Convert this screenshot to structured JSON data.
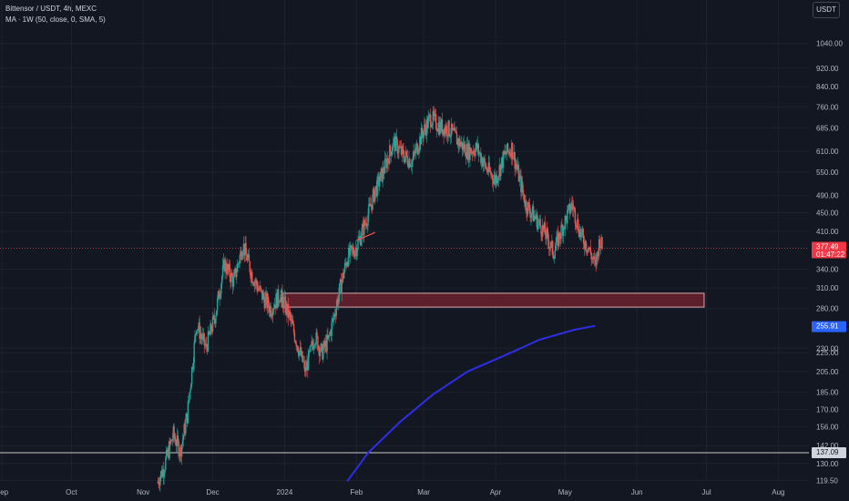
{
  "legend": {
    "symbol_line": "Bittensor / USDT, 4h, MEXC",
    "ma_line": "MA · 1W (50, close, 0, SMA, 5)"
  },
  "currency_button": "USDT",
  "colors": {
    "background": "#131722",
    "up": "#26a69a",
    "down": "#ef5350",
    "ma": "#2e2ee6",
    "zone_fill": "#5c1f2b",
    "grid": "#1e222d",
    "axis_text": "#b2b5be"
  },
  "chart_data": {
    "type": "candlestick",
    "symbol": "Bittensor / USDT",
    "interval": "4h",
    "exchange": "MEXC",
    "y_scale": "log",
    "ylim": [
      115,
      1200
    ],
    "y_ticks": [
      "1040.00",
      "920.00",
      "840.00",
      "760.00",
      "685.00",
      "610.00",
      "550.00",
      "490.00",
      "450.00",
      "410.00",
      "340.00",
      "310.00",
      "280.00",
      "230.00",
      "225.00",
      "205.00",
      "185.00",
      "170.00",
      "156.00",
      "142.00",
      "130.00",
      "119.50"
    ],
    "x_range": [
      "2023-09-01",
      "2024-08-15"
    ],
    "x_ticks": [
      {
        "label": "Sep",
        "date": "2023-09-01"
      },
      {
        "label": "Oct",
        "date": "2023-10-01"
      },
      {
        "label": "Nov",
        "date": "2023-11-01"
      },
      {
        "label": "Dec",
        "date": "2023-12-01"
      },
      {
        "label": "2024",
        "date": "2024-01-01"
      },
      {
        "label": "Feb",
        "date": "2024-02-01"
      },
      {
        "label": "Mar",
        "date": "2024-03-01"
      },
      {
        "label": "Apr",
        "date": "2024-04-01"
      },
      {
        "label": "May",
        "date": "2024-05-01"
      },
      {
        "label": "Jun",
        "date": "2024-06-01"
      },
      {
        "label": "Jul",
        "date": "2024-07-01"
      },
      {
        "label": "Aug",
        "date": "2024-08-01"
      }
    ],
    "price_path": [
      [
        "2023-11-07",
        118
      ],
      [
        "2023-11-10",
        128
      ],
      [
        "2023-11-14",
        150
      ],
      [
        "2023-11-17",
        138
      ],
      [
        "2023-11-20",
        165
      ],
      [
        "2023-11-24",
        260
      ],
      [
        "2023-11-28",
        230
      ],
      [
        "2023-12-02",
        270
      ],
      [
        "2023-12-06",
        350
      ],
      [
        "2023-12-10",
        320
      ],
      [
        "2023-12-14",
        385
      ],
      [
        "2023-12-18",
        330
      ],
      [
        "2023-12-22",
        300
      ],
      [
        "2023-12-26",
        280
      ],
      [
        "2023-12-30",
        300
      ],
      [
        "2024-01-03",
        270
      ],
      [
        "2024-01-07",
        230
      ],
      [
        "2024-01-10",
        205
      ],
      [
        "2024-01-14",
        245
      ],
      [
        "2024-01-17",
        225
      ],
      [
        "2024-01-20",
        240
      ],
      [
        "2024-01-24",
        295
      ],
      [
        "2024-01-28",
        360
      ],
      [
        "2024-02-01",
        380
      ],
      [
        "2024-02-05",
        430
      ],
      [
        "2024-02-09",
        500
      ],
      [
        "2024-02-13",
        560
      ],
      [
        "2024-02-17",
        640
      ],
      [
        "2024-02-21",
        600
      ],
      [
        "2024-02-25",
        580
      ],
      [
        "2024-02-29",
        660
      ],
      [
        "2024-03-04",
        720
      ],
      [
        "2024-03-08",
        690
      ],
      [
        "2024-03-12",
        680
      ],
      [
        "2024-03-16",
        640
      ],
      [
        "2024-03-20",
        610
      ],
      [
        "2024-03-24",
        620
      ],
      [
        "2024-03-28",
        560
      ],
      [
        "2024-04-01",
        530
      ],
      [
        "2024-04-05",
        600
      ],
      [
        "2024-04-08",
        620
      ],
      [
        "2024-04-11",
        540
      ],
      [
        "2024-04-14",
        470
      ],
      [
        "2024-04-18",
        440
      ],
      [
        "2024-04-22",
        410
      ],
      [
        "2024-04-26",
        370
      ],
      [
        "2024-04-30",
        420
      ],
      [
        "2024-05-04",
        470
      ],
      [
        "2024-05-08",
        400
      ],
      [
        "2024-05-11",
        380
      ],
      [
        "2024-05-14",
        345
      ],
      [
        "2024-05-16",
        395
      ],
      [
        "2024-05-17",
        377.49
      ]
    ],
    "moving_average": {
      "name": "MA 1W (50, close, 0, SMA, 5)",
      "points": [
        [
          "2024-01-28",
          119
        ],
        [
          "2024-02-06",
          137
        ],
        [
          "2024-02-20",
          160
        ],
        [
          "2024-03-05",
          183
        ],
        [
          "2024-03-20",
          205
        ],
        [
          "2024-04-05",
          222
        ],
        [
          "2024-04-20",
          240
        ],
        [
          "2024-05-05",
          252
        ],
        [
          "2024-05-14",
          257
        ]
      ]
    },
    "zone": {
      "date_from": "2023-12-31",
      "date_to": "2024-06-30",
      "price_low": 282,
      "price_high": 302
    },
    "horizontal_line": 137.09,
    "trend_segment": [
      [
        "2024-02-01",
        392
      ],
      [
        "2024-02-09",
        408
      ]
    ],
    "last_price": {
      "value": "377.49",
      "countdown": "01:47:22"
    },
    "ma_value": "255.91",
    "hline_label": "137.09"
  }
}
